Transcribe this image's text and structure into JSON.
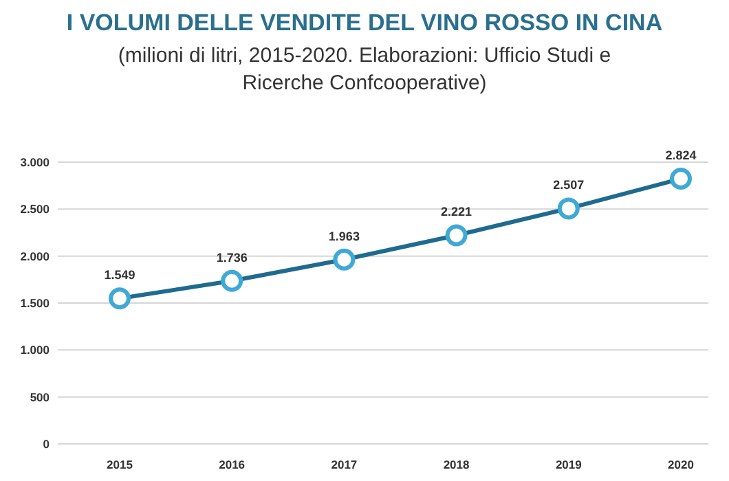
{
  "chart_data": {
    "type": "line",
    "title": "I VOLUMI DELLE VENDITE DEL VINO ROSSO IN CINA",
    "subtitle": "(milioni di litri, 2015-2020. Elaborazioni: Ufficio Studi e Ricerche Confcooperative)",
    "categories": [
      "2015",
      "2016",
      "2017",
      "2018",
      "2019",
      "2020"
    ],
    "series": [
      {
        "color": "#1f6b8f",
        "values": [
          1549,
          1736,
          1963,
          2221,
          2507,
          2824
        ],
        "value_labels": [
          "1.549",
          "1.736",
          "1.963",
          "2.221",
          "2.507",
          "2.824"
        ]
      }
    ],
    "ylim": [
      0,
      3000
    ],
    "yticks": [
      {
        "value": 0,
        "label": "0"
      },
      {
        "value": 500,
        "label": "500"
      },
      {
        "value": 1000,
        "label": "1.000"
      },
      {
        "value": 1500,
        "label": "1.500"
      },
      {
        "value": 2000,
        "label": "2.000"
      },
      {
        "value": 2500,
        "label": "2.500"
      },
      {
        "value": 3000,
        "label": "3.000"
      }
    ],
    "grid": "y",
    "marker": "circle",
    "line_style": "solid"
  }
}
